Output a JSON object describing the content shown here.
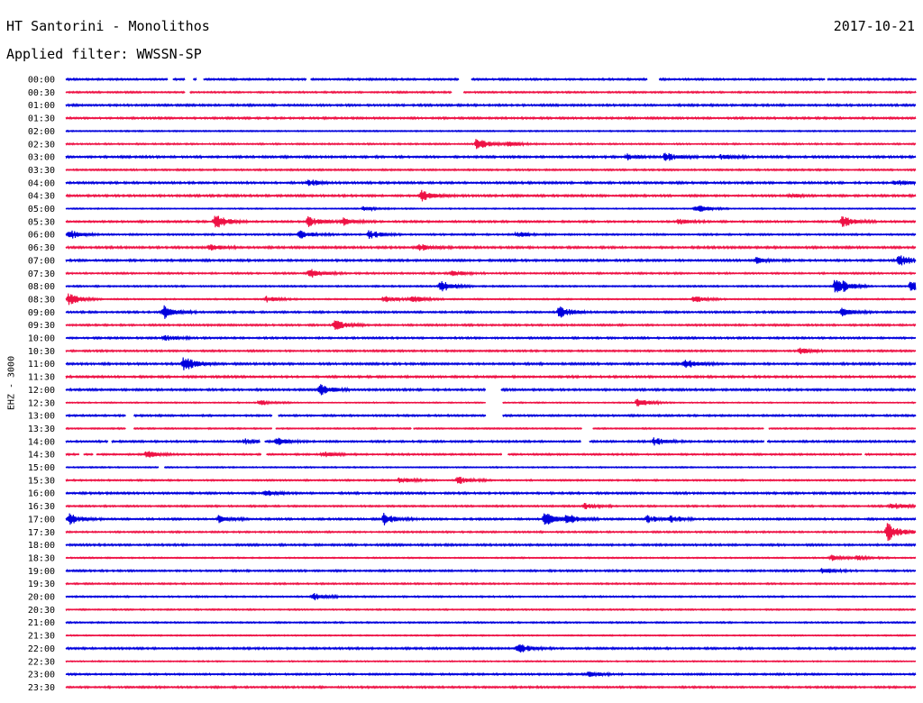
{
  "header": {
    "title": "HT Santorini - Monolithos",
    "date": "2017-10-21",
    "filter": "Applied filter: WWSSN-SP"
  },
  "chart_data": {
    "type": "line",
    "ylabel": "EHZ - 3000",
    "colors": [
      "#0000dd",
      "#ee1144"
    ],
    "tick_labels": [
      "00:00",
      "00:30",
      "01:00",
      "01:30",
      "02:00",
      "02:30",
      "03:00",
      "03:30",
      "04:00",
      "04:30",
      "05:00",
      "05:30",
      "06:00",
      "06:30",
      "07:00",
      "07:30",
      "08:00",
      "08:30",
      "09:00",
      "09:30",
      "10:00",
      "10:30",
      "11:00",
      "11:30",
      "12:00",
      "12:30",
      "13:00",
      "13:30",
      "14:00",
      "14:30",
      "15:00",
      "15:30",
      "16:00",
      "16:30",
      "17:00",
      "17:30",
      "18:00",
      "18:30",
      "19:00",
      "19:30",
      "20:00",
      "20:30",
      "21:00",
      "21:30",
      "22:00",
      "22:30",
      "23:00",
      "23:30"
    ],
    "trace_minutes": 30,
    "gaps": [
      [
        0,
        12.0,
        12.6
      ],
      [
        0,
        14.0,
        15.0
      ],
      [
        0,
        15.3,
        16.2
      ],
      [
        0,
        28.3,
        28.8
      ],
      [
        0,
        46.2,
        47.7
      ],
      [
        0,
        68.4,
        69.8
      ],
      [
        0,
        89.3,
        89.6
      ],
      [
        1,
        14.0,
        14.6
      ],
      [
        1,
        45.4,
        46.8
      ],
      [
        24,
        49.4,
        51.2
      ],
      [
        25,
        49.4,
        51.4
      ],
      [
        26,
        7.0,
        8.0
      ],
      [
        26,
        24.3,
        25.0
      ],
      [
        26,
        49.4,
        51.4
      ],
      [
        27,
        7.0,
        8.0
      ],
      [
        27,
        24.2,
        24.7
      ],
      [
        27,
        40.6,
        40.9
      ],
      [
        27,
        60.7,
        62.0
      ],
      [
        27,
        82.1,
        82.7
      ],
      [
        28,
        4.9,
        5.4
      ],
      [
        28,
        22.8,
        23.4
      ],
      [
        28,
        60.6,
        61.6
      ],
      [
        28,
        82.1,
        82.5
      ],
      [
        29,
        1.5,
        2.1
      ],
      [
        29,
        3.2,
        3.6
      ],
      [
        29,
        23.0,
        23.6
      ],
      [
        29,
        51.3,
        52.0
      ],
      [
        29,
        93.6,
        94.0
      ],
      [
        30,
        10.9,
        11.6
      ]
    ],
    "events": [
      [
        5,
        48.3,
        6
      ],
      [
        5,
        52.0,
        3
      ],
      [
        6,
        66.0,
        3
      ],
      [
        6,
        70.5,
        5
      ],
      [
        6,
        77.0,
        3
      ],
      [
        8,
        28.4,
        4
      ],
      [
        8,
        97.5,
        3
      ],
      [
        9,
        41.8,
        6
      ],
      [
        9,
        85.0,
        2
      ],
      [
        10,
        35.0,
        2
      ],
      [
        10,
        74.0,
        5
      ],
      [
        11,
        17.5,
        8
      ],
      [
        11,
        28.5,
        6
      ],
      [
        11,
        32.6,
        4
      ],
      [
        11,
        72.0,
        3
      ],
      [
        11,
        91.3,
        6
      ],
      [
        12,
        0.3,
        5
      ],
      [
        12,
        27.5,
        4
      ],
      [
        12,
        35.6,
        5
      ],
      [
        12,
        53.0,
        3
      ],
      [
        13,
        16.8,
        3
      ],
      [
        13,
        41.5,
        4
      ],
      [
        14,
        81.2,
        3
      ],
      [
        14,
        98.0,
        7
      ],
      [
        15,
        28.6,
        5
      ],
      [
        15,
        45.4,
        3
      ],
      [
        16,
        44.0,
        7
      ],
      [
        16,
        90.5,
        12
      ],
      [
        16,
        99.4,
        6
      ],
      [
        17,
        0.3,
        7
      ],
      [
        17,
        23.6,
        3
      ],
      [
        17,
        37.4,
        4
      ],
      [
        17,
        40.5,
        5
      ],
      [
        17,
        73.9,
        4
      ],
      [
        18,
        11.5,
        7
      ],
      [
        18,
        58.0,
        6
      ],
      [
        18,
        91.3,
        4
      ],
      [
        19,
        31.6,
        5
      ],
      [
        20,
        11.5,
        3
      ],
      [
        21,
        86.3,
        3
      ],
      [
        22,
        13.8,
        8
      ],
      [
        22,
        72.8,
        5
      ],
      [
        24,
        29.8,
        6
      ],
      [
        25,
        22.8,
        3
      ],
      [
        25,
        67.2,
        6
      ],
      [
        28,
        21.0,
        3
      ],
      [
        28,
        24.8,
        4
      ],
      [
        28,
        69.2,
        4
      ],
      [
        29,
        9.4,
        4
      ],
      [
        29,
        30.2,
        4
      ],
      [
        31,
        39.2,
        4
      ],
      [
        31,
        46.1,
        5
      ],
      [
        32,
        23.5,
        3
      ],
      [
        33,
        61.0,
        3
      ],
      [
        33,
        97.0,
        4
      ],
      [
        34,
        0.3,
        6
      ],
      [
        34,
        18.0,
        4
      ],
      [
        34,
        37.4,
        6
      ],
      [
        34,
        56.3,
        7
      ],
      [
        34,
        58.8,
        5
      ],
      [
        34,
        68.4,
        4
      ],
      [
        34,
        71.0,
        4
      ],
      [
        35,
        96.6,
        12
      ],
      [
        37,
        93.0,
        3
      ],
      [
        37,
        90.0,
        3
      ],
      [
        38,
        89.0,
        3
      ],
      [
        40,
        29.0,
        4
      ],
      [
        44,
        53.2,
        5
      ],
      [
        46,
        61.5,
        3
      ]
    ]
  }
}
